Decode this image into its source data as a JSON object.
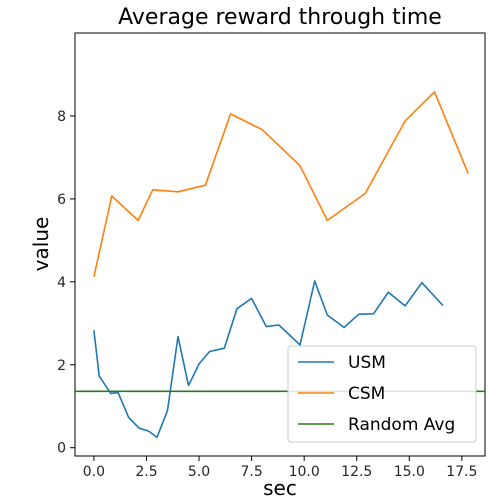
{
  "chart_data": {
    "type": "line",
    "title": "Average reward through time",
    "xlabel": "sec",
    "ylabel": "value",
    "xlim": [
      -0.9,
      18.6
    ],
    "ylim": [
      -0.2,
      10.0
    ],
    "x_ticks": [
      0.0,
      2.5,
      5.0,
      7.5,
      10.0,
      12.5,
      15.0,
      17.5
    ],
    "x_tick_labels": [
      "0.0",
      "2.5",
      "5.0",
      "7.5",
      "10.0",
      "12.5",
      "15.0",
      "17.5"
    ],
    "y_ticks": [
      0,
      2,
      4,
      6,
      8
    ],
    "y_tick_labels": [
      "0",
      "2",
      "4",
      "6",
      "8"
    ],
    "grid": false,
    "legend_position": "bottom-right",
    "series": [
      {
        "name": "USM",
        "color": "#1f77b4",
        "x": [
          0.0,
          0.25,
          0.8,
          1.15,
          1.65,
          2.15,
          2.6,
          3.0,
          3.5,
          4.0,
          4.5,
          5.0,
          5.5,
          6.2,
          6.8,
          7.5,
          8.2,
          8.8,
          9.8,
          10.5,
          11.1,
          11.9,
          12.6,
          13.3,
          14.0,
          14.8,
          15.6,
          16.6
        ],
        "y": [
          2.83,
          1.73,
          1.31,
          1.33,
          0.73,
          0.47,
          0.4,
          0.25,
          0.9,
          2.68,
          1.5,
          2.02,
          2.32,
          2.4,
          3.35,
          3.6,
          2.92,
          2.96,
          2.48,
          4.02,
          3.2,
          2.9,
          3.22,
          3.23,
          3.75,
          3.42,
          3.98,
          3.43
        ]
      },
      {
        "name": "CSM",
        "color": "#ff7f0e",
        "x": [
          0.0,
          0.85,
          2.1,
          2.8,
          4.0,
          5.3,
          6.5,
          8.0,
          9.8,
          11.1,
          12.9,
          14.8,
          16.2,
          17.8
        ],
        "y": [
          4.12,
          6.07,
          5.48,
          6.22,
          6.17,
          6.33,
          8.05,
          7.67,
          6.8,
          5.48,
          6.13,
          7.88,
          8.58,
          6.61
        ]
      },
      {
        "name": "Random Avg",
        "color": "#2a7a1a",
        "x": [
          -0.9,
          18.6
        ],
        "y": [
          1.36,
          1.36
        ]
      }
    ]
  }
}
